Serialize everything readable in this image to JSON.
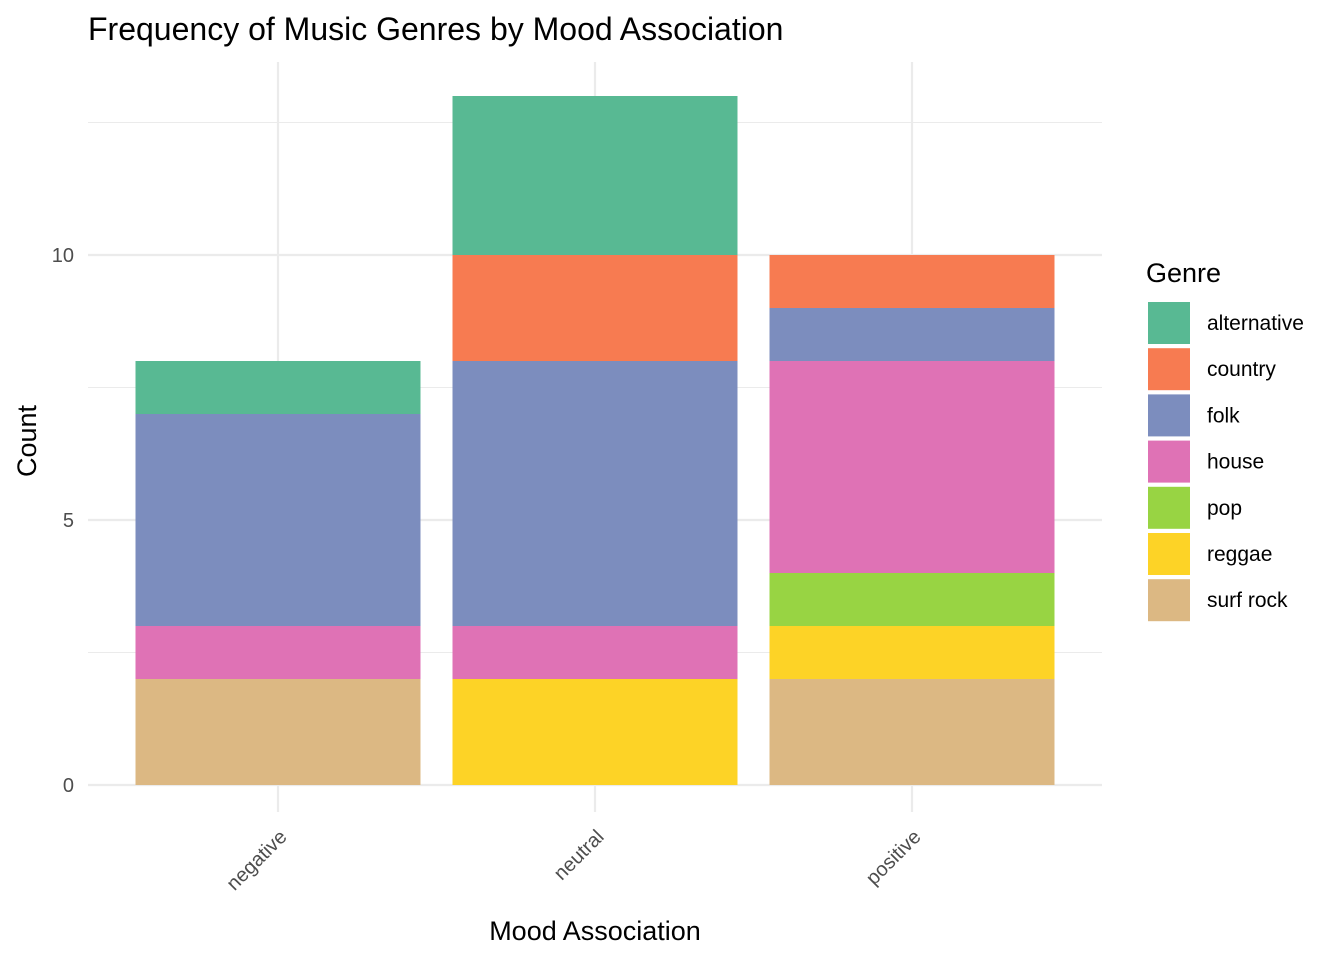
{
  "chart_data": {
    "type": "bar",
    "stacked": true,
    "title": "Frequency of Music Genres by Mood Association",
    "xlabel": "Mood Association",
    "ylabel": "Count",
    "categories": [
      "negative",
      "neutral",
      "positive"
    ],
    "ylim": [
      0,
      13
    ],
    "y_ticks": [
      0,
      5,
      10
    ],
    "grid": true,
    "x_tick_rotation": "45 degrees",
    "legend": {
      "title": "Genre",
      "placement": "right"
    },
    "series": [
      {
        "name": "alternative",
        "color": "#58b993",
        "values": [
          1,
          3,
          0
        ]
      },
      {
        "name": "country",
        "color": "#f77b51",
        "values": [
          0,
          2,
          1
        ]
      },
      {
        "name": "folk",
        "color": "#7c8dbe",
        "values": [
          4,
          5,
          1
        ]
      },
      {
        "name": "house",
        "color": "#df72b5",
        "values": [
          1,
          1,
          4
        ]
      },
      {
        "name": "pop",
        "color": "#98d443",
        "values": [
          0,
          0,
          1
        ]
      },
      {
        "name": "reggae",
        "color": "#fdd326",
        "values": [
          0,
          2,
          1
        ]
      },
      {
        "name": "surf rock",
        "color": "#dcb883",
        "values": [
          2,
          0,
          2
        ]
      }
    ]
  }
}
